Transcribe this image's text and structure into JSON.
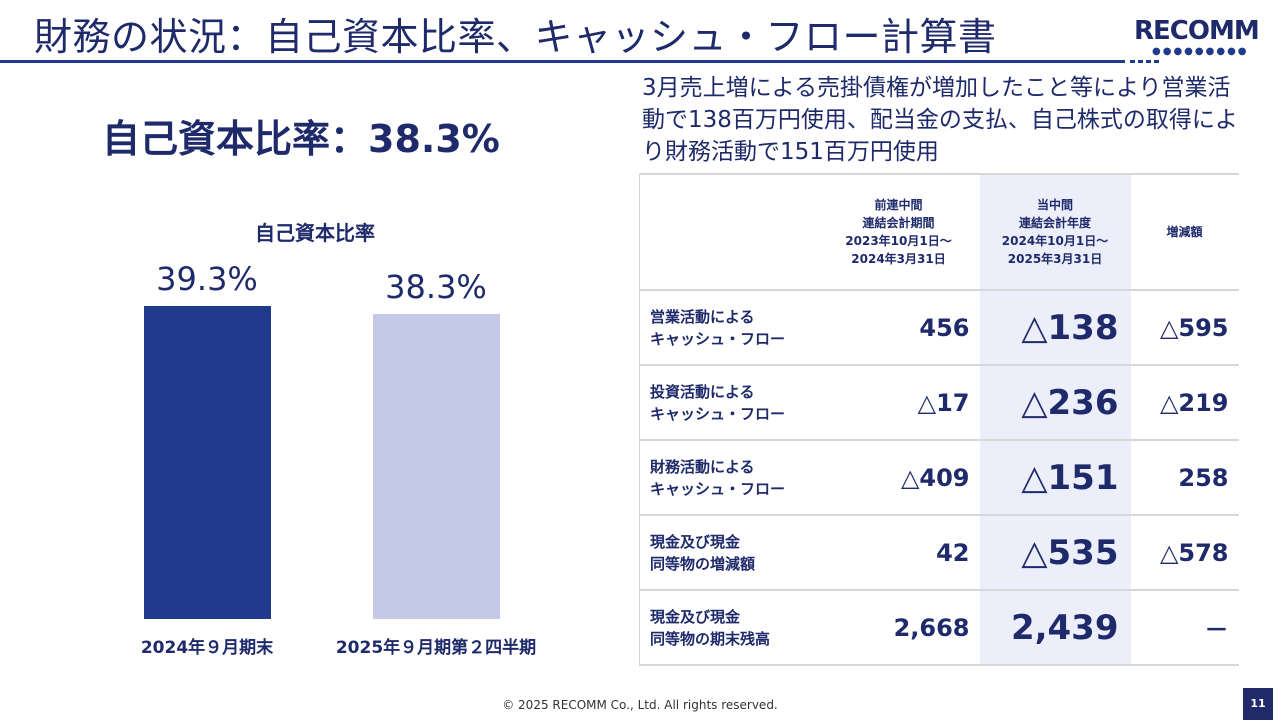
{
  "header": {
    "title": "財務の状況：自己資本比率、キャッシュ・フロー計算書",
    "logo_text": "RECOMM"
  },
  "left": {
    "headline": "自己資本比率：38.3%"
  },
  "chart_data": {
    "type": "bar",
    "title": "自己資本比率",
    "categories": [
      "2024年９月期末",
      "2025年９月期第２四半期"
    ],
    "values": [
      39.3,
      38.3
    ],
    "value_labels": [
      "39.3%",
      "38.3%"
    ],
    "colors": [
      "#1f3a8a",
      "#c5c9e8"
    ],
    "ylim": [
      0,
      40
    ],
    "grid": false
  },
  "summary": "3月売上増による売掛債権が増加したこと等により営業活動で138百万円使用、配当金の支払、自己株式の取得により財務活動で151百万円使用",
  "table": {
    "headers": {
      "prev": [
        "前連中間",
        "連結会計期間",
        "2023年10月1日～",
        "2024年3月31日"
      ],
      "cur": [
        "当中間",
        "連結会計年度",
        "2024年10月1日～",
        "2025年3月31日"
      ],
      "chg": "増減額"
    },
    "rows": [
      {
        "label": [
          "営業活動による",
          "キャッシュ・フロー"
        ],
        "prev": "456",
        "cur": "△138",
        "chg": "△595"
      },
      {
        "label": [
          "投資活動による",
          "キャッシュ・フロー"
        ],
        "prev": "△17",
        "cur": "△236",
        "chg": "△219"
      },
      {
        "label": [
          "財務活動による",
          "キャッシュ・フロー"
        ],
        "prev": "△409",
        "cur": "△151",
        "chg": "258"
      },
      {
        "label": [
          "現金及び現金",
          "同等物の増減額"
        ],
        "prev": "42",
        "cur": "△535",
        "chg": "△578"
      },
      {
        "label": [
          "現金及び現金",
          "同等物の期末残高"
        ],
        "prev": "2,668",
        "cur": "2,439",
        "chg": "－"
      }
    ]
  },
  "footer": {
    "copyright": "© 2025 RECOMM Co., Ltd. All rights reserved.",
    "page": "11"
  },
  "colors": {
    "navy": "#1f2a6b",
    "bar_dark": "#1f3a8a",
    "bar_light": "#c5c9e8",
    "highlight_bg": "#eceff9"
  }
}
